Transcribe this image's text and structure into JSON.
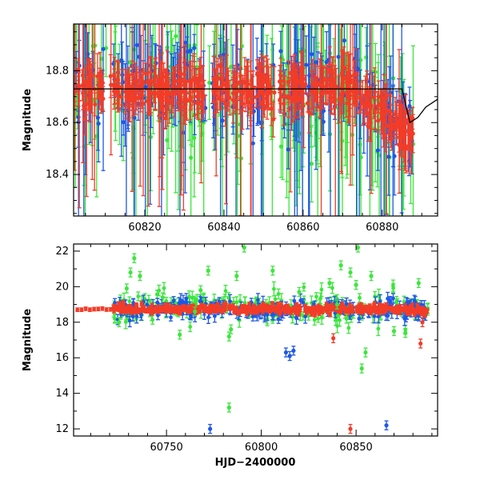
{
  "colors": {
    "blue": "#1f57e6",
    "green": "#3ce63c",
    "red": "#f23c28",
    "model": "#000000"
  },
  "chart_data": [
    {
      "type": "scatter",
      "panel": "top",
      "title": "",
      "xlabel": "",
      "ylabel": "Magnitude",
      "xlim": [
        60802,
        60894
      ],
      "ylim": [
        18.98,
        18.24
      ],
      "y_inverted": true,
      "xticks": [
        60820,
        60840,
        60860,
        60880
      ],
      "yticks": [
        18.4,
        18.6,
        18.8
      ],
      "grid": false,
      "series": [
        {
          "color": "blue",
          "note_level": 18.73,
          "error_typical": 0.08
        },
        {
          "color": "green",
          "note_level": 18.72,
          "error_typical": 0.12
        },
        {
          "color": "red",
          "note_level": 18.73,
          "error_typical": 0.05
        }
      ],
      "model_curve": {
        "color": "model",
        "x": [
          60802,
          60850,
          60885,
          60887,
          60889,
          60891,
          60893,
          60894
        ],
        "y": [
          18.73,
          18.73,
          18.73,
          18.6,
          18.62,
          18.66,
          18.68,
          18.69
        ]
      }
    },
    {
      "type": "scatter",
      "panel": "bottom",
      "title": "",
      "xlabel": "HJD−2400000",
      "ylabel": "Magnitude",
      "xlim": [
        60701,
        60893
      ],
      "ylim": [
        22.4,
        11.6
      ],
      "y_inverted": true,
      "xticks": [
        60750,
        60800,
        60850
      ],
      "yticks": [
        12,
        14,
        16,
        18,
        20,
        22
      ],
      "grid": false,
      "outliers": {
        "blue": [
          [
            60773,
            12.0
          ],
          [
            60815,
            16.1
          ],
          [
            60817,
            16.4
          ],
          [
            60866,
            12.2
          ],
          [
            60813,
            16.3
          ],
          [
            60868,
            19.2
          ]
        ],
        "green": [
          [
            60783,
            13.2
          ],
          [
            60725,
            18.0
          ],
          [
            60729,
            19.9
          ],
          [
            60731,
            20.8
          ],
          [
            60733,
            21.6
          ],
          [
            60736,
            20.6
          ],
          [
            60748,
            19.4
          ],
          [
            60757,
            17.3
          ],
          [
            60765,
            18.6
          ],
          [
            60768,
            19.8
          ],
          [
            60772,
            20.9
          ],
          [
            60783,
            17.2
          ],
          [
            60784,
            17.6
          ],
          [
            60787,
            20.6
          ],
          [
            60791,
            22.2
          ],
          [
            60806,
            20.9
          ],
          [
            60820,
            19.7
          ],
          [
            60836,
            20.2
          ],
          [
            60842,
            21.2
          ],
          [
            60847,
            20.8
          ],
          [
            60850,
            20.1
          ],
          [
            60851,
            22.2
          ],
          [
            60853,
            15.4
          ],
          [
            60855,
            16.3
          ],
          [
            60858,
            20.6
          ],
          [
            60870,
            17.5
          ],
          [
            60876,
            17.4
          ],
          [
            60883,
            20.2
          ],
          [
            60840,
            19.0
          ],
          [
            60845,
            18.2
          ]
        ],
        "red": [
          [
            60847,
            12.0
          ],
          [
            60838,
            17.1
          ],
          [
            60884,
            16.8
          ],
          [
            60885,
            18.0
          ]
        ]
      }
    }
  ]
}
